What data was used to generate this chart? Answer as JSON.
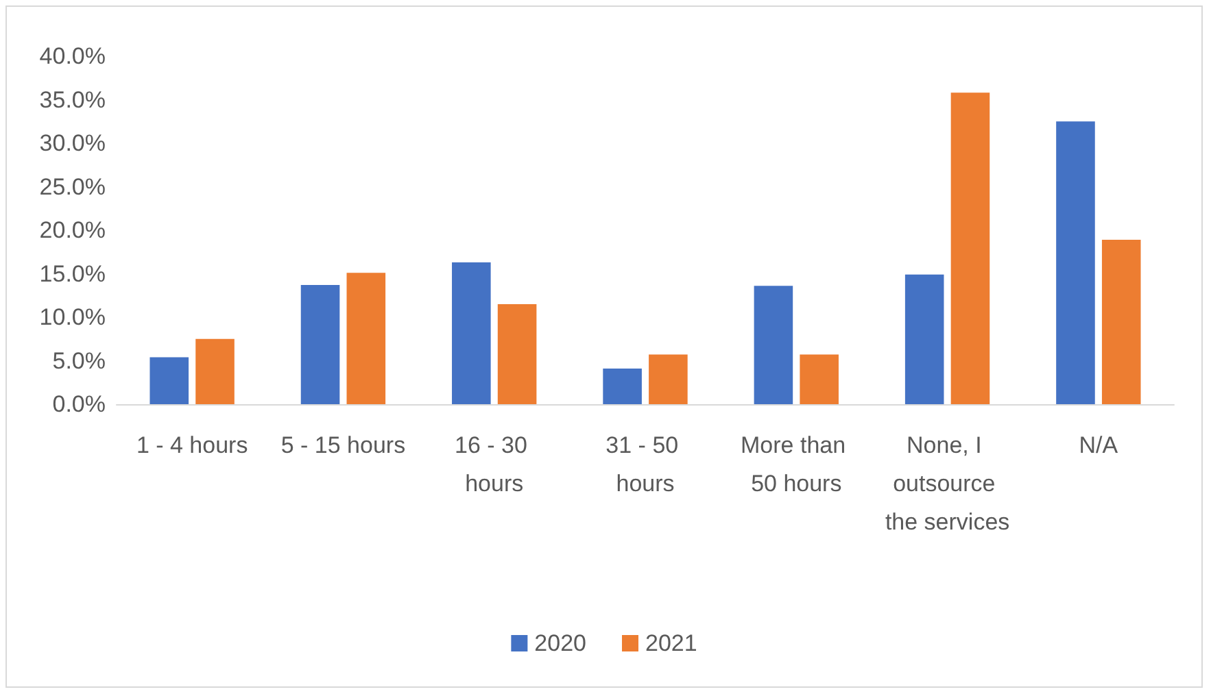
{
  "chart_data": {
    "type": "bar",
    "categories": [
      "1 - 4 hours",
      "5 - 15 hours",
      "16 - 30 hours",
      "31 - 50 hours",
      "More than 50 hours",
      "None, I outsource the services",
      "N/A"
    ],
    "series": [
      {
        "name": "2020",
        "color": "#4472c4",
        "values": [
          5.4,
          13.7,
          16.3,
          4.1,
          13.6,
          14.9,
          32.5
        ]
      },
      {
        "name": "2021",
        "color": "#ed7d31",
        "values": [
          7.5,
          15.1,
          11.5,
          5.7,
          5.7,
          35.8,
          18.9
        ]
      }
    ],
    "ylim": [
      0,
      40
    ],
    "yticks": [
      {
        "value": 0,
        "label": "0.0%"
      },
      {
        "value": 5,
        "label": "5.0%"
      },
      {
        "value": 10,
        "label": "10.0%"
      },
      {
        "value": 15,
        "label": "15.0%"
      },
      {
        "value": 20,
        "label": "20.0%"
      },
      {
        "value": 25,
        "label": "25.0%"
      },
      {
        "value": 30,
        "label": "30.0%"
      },
      {
        "value": 35,
        "label": "35.0%"
      },
      {
        "value": 40,
        "label": "40.0%"
      }
    ],
    "grid": false,
    "legend": "bottom"
  }
}
